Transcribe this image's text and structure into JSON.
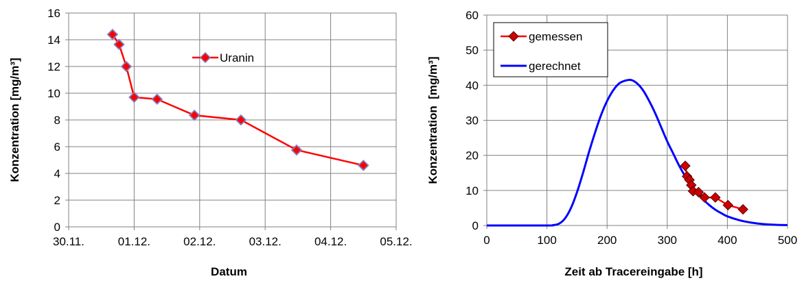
{
  "chart_data": [
    {
      "type": "line",
      "xlabel": "Datum",
      "ylabel": "Konzentration [mg/m³]",
      "x_ticks": [
        "30.11.",
        "01.12.",
        "02.12.",
        "03.12.",
        "04.12.",
        "05.12."
      ],
      "y_ticks": [
        "0",
        "2",
        "4",
        "6",
        "8",
        "10",
        "12",
        "14",
        "16"
      ],
      "xlim": [
        0,
        5
      ],
      "ylim": [
        0,
        16
      ],
      "grid": true,
      "legend_position": "top-right",
      "colors": {
        "line": "#ff0000",
        "marker_fill": "#ff0000",
        "marker_stroke": "#8080c0"
      },
      "series": [
        {
          "name": "Uranin",
          "x": [
            0.67,
            0.77,
            0.88,
            1.0,
            1.35,
            1.92,
            2.63,
            3.48,
            4.5
          ],
          "y": [
            14.4,
            13.65,
            12.0,
            9.7,
            9.55,
            8.35,
            8.0,
            5.75,
            4.6
          ]
        }
      ]
    },
    {
      "type": "line",
      "xlabel": "Zeit ab Tracereingabe [h]",
      "ylabel": "Konzentration  [mg/m³]",
      "x_ticks": [
        "0",
        "100",
        "200",
        "300",
        "400",
        "500"
      ],
      "y_ticks": [
        "0",
        "10",
        "20",
        "30",
        "40",
        "50",
        "60"
      ],
      "xlim": [
        0,
        500
      ],
      "ylim": [
        0,
        60
      ],
      "grid": true,
      "legend_position": "top-left",
      "colors": {
        "measured_line": "#ff0000",
        "measured_marker": "#cc0000",
        "computed_line": "#0000ff"
      },
      "series": [
        {
          "name": "gemessen",
          "x": [
            330,
            333,
            337,
            340,
            343,
            352,
            362,
            380,
            401,
            426
          ],
          "y": [
            17,
            14,
            13,
            11.5,
            9.8,
            9.5,
            8,
            8,
            5.8,
            4.6
          ]
        },
        {
          "name": "gerechnet",
          "x": [
            0,
            100,
            110,
            120,
            130,
            140,
            150,
            160,
            170,
            180,
            190,
            200,
            210,
            220,
            230,
            240,
            250,
            260,
            270,
            280,
            290,
            300,
            310,
            320,
            330,
            340,
            350,
            360,
            370,
            380,
            390,
            400,
            420,
            440,
            460,
            480,
            500
          ],
          "y": [
            0,
            0,
            0.1,
            0.5,
            2,
            5,
            9.5,
            15,
            21,
            26.5,
            31.5,
            35.5,
            38.5,
            40.5,
            41.3,
            41.5,
            40.5,
            38.5,
            35.5,
            32,
            28,
            24,
            20.5,
            17,
            14,
            11.5,
            9.3,
            7.4,
            5.8,
            4.5,
            3.5,
            2.6,
            1.5,
            0.8,
            0.4,
            0.2,
            0.1
          ]
        }
      ]
    }
  ]
}
